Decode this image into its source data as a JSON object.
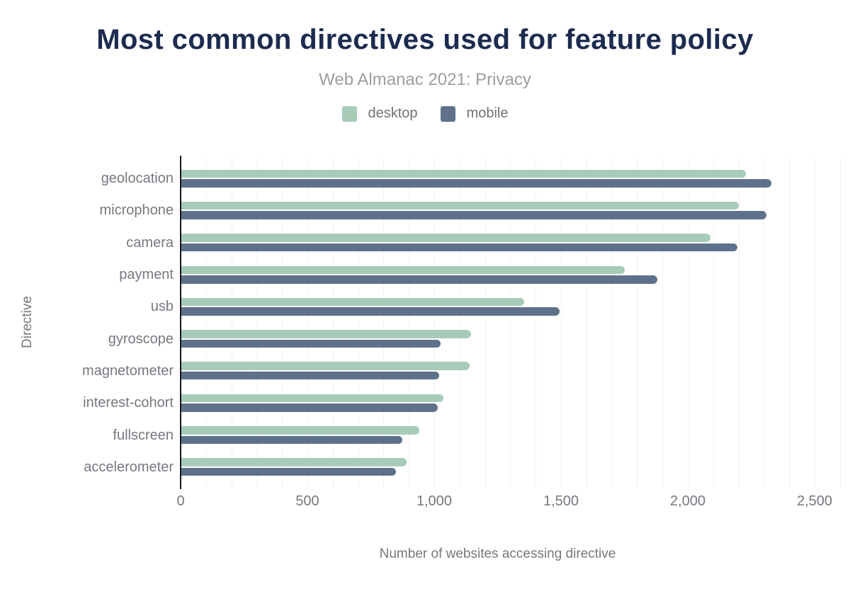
{
  "chart_data": {
    "type": "bar",
    "orientation": "horizontal",
    "title": "Most common directives used for feature policy",
    "subtitle": "Web Almanac 2021: Privacy",
    "categories": [
      "geolocation",
      "microphone",
      "camera",
      "payment",
      "usb",
      "gyroscope",
      "magnetometer",
      "interest-cohort",
      "fullscreen",
      "accelerometer"
    ],
    "series": [
      {
        "name": "desktop",
        "color": "#a8cbb7",
        "values": [
          2230,
          2200,
          2090,
          1750,
          1355,
          1145,
          1140,
          1035,
          940,
          890
        ]
      },
      {
        "name": "mobile",
        "color": "#5e718b",
        "values": [
          2330,
          2310,
          2195,
          1880,
          1495,
          1025,
          1020,
          1015,
          875,
          850
        ]
      }
    ],
    "xlabel": "Number of websites accessing directive",
    "ylabel": "Directive",
    "xlim": [
      0,
      2500
    ],
    "xticks": [
      0,
      500,
      1000,
      1500,
      2000,
      2500
    ],
    "xtick_labels": [
      "0",
      "500",
      "1,000",
      "1,500",
      "2,000",
      "2,500"
    ],
    "grid": true,
    "grid_step": 100,
    "legend_position": "top",
    "colors": {
      "title": "#1c2b4f",
      "subtitle": "#9b9ea4",
      "axis_text": "#75787e",
      "gridline": "#f1f1f4",
      "axis_line": "#16161d",
      "background": "#ffffff"
    }
  }
}
